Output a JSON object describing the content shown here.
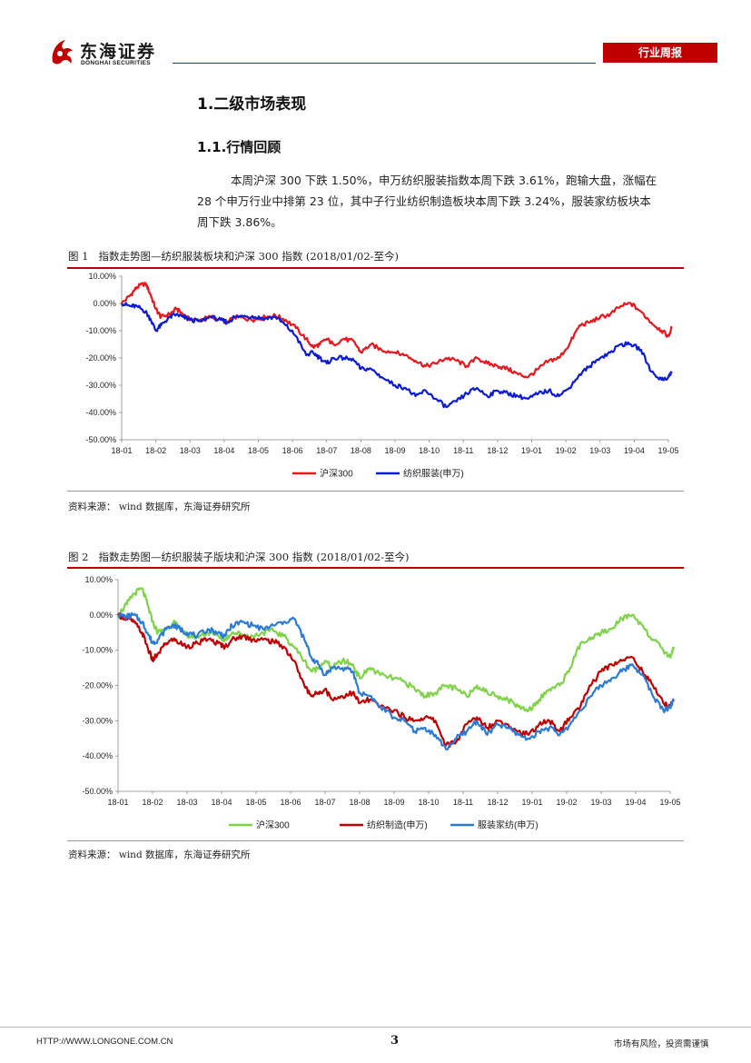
{
  "header": {
    "company_cn": "东海证券",
    "company_en": "DONGHAI SECURITIES",
    "report_type": "行业周报",
    "colors": {
      "brand_red": "#c00000"
    }
  },
  "section": {
    "title": "1.二级市场表现",
    "subtitle": "1.1.行情回顾",
    "paragraph_lines": [
      "本周沪深 300 下跌 1.50%，申万纺织服装指数本周下跌 3.61%，跑输大盘，涨幅在",
      "28 个申万行业中排第 23 位，其中子行业纺织制造板块本周下跌 3.24%，服装家纺板块本",
      "周下跌 3.86%。"
    ]
  },
  "figure1": {
    "caption_label": "图 1",
    "caption_text": "指数走势图—纺织服装板块和沪深 300 指数 (2018/01/02-至今)",
    "source": "资料来源：  wind 数据库，东海证券研究所"
  },
  "figure2": {
    "caption_label": "图 2",
    "caption_text": "指数走势图—纺织服装子版块和沪深 300 指数 (2018/01/02-至今)",
    "source": "资料来源：  wind 数据库，东海证券研究所"
  },
  "footer": {
    "url": "HTTP://WWW.LONGONE.COM.CN",
    "page_number": "3",
    "disclaimer": "市场有风险，投资需谨慎"
  },
  "chart_data": [
    {
      "type": "line",
      "x_ticks": [
        "18-01",
        "18-02",
        "18-03",
        "18-04",
        "18-05",
        "18-06",
        "18-07",
        "18-08",
        "18-09",
        "18-10",
        "18-11",
        "18-12",
        "19-01",
        "19-02",
        "19-03",
        "19-04",
        "19-05"
      ],
      "y_ticks": [
        "10.00%",
        "0.00%",
        "-10.00%",
        "-20.00%",
        "-30.00%",
        "-40.00%",
        "-50.00%"
      ],
      "ylim": [
        -50,
        10
      ],
      "y_unit": "%",
      "legend_position": "bottom",
      "series": [
        {
          "name": "沪深300",
          "color": "#e8171d",
          "x": [
            0,
            0.25,
            0.45,
            0.7,
            0.85,
            1.0,
            1.15,
            1.4,
            1.6,
            1.8,
            2.0,
            2.3,
            2.6,
            2.9,
            3.1,
            3.3,
            3.6,
            3.9,
            4.2,
            4.5,
            4.8,
            5.1,
            5.4,
            5.6,
            5.8,
            6.0,
            6.2,
            6.5,
            6.8,
            7.0,
            7.3,
            7.6,
            8.0,
            8.3,
            8.6,
            8.9,
            9.2,
            9.5,
            9.8,
            10.1,
            10.4,
            10.7,
            11.0,
            11.3,
            11.6,
            11.9,
            12.2,
            12.5,
            12.8,
            13.1,
            13.4,
            13.7,
            14.0,
            14.3,
            14.6,
            14.9,
            15.2,
            15.5,
            15.8,
            16.0,
            16.1
          ],
          "values": [
            0,
            3,
            6,
            7.5,
            3,
            -2,
            -5,
            -4,
            -2,
            -4,
            -6,
            -6,
            -5,
            -6,
            -7,
            -5,
            -5.5,
            -6,
            -5,
            -4.5,
            -6,
            -9,
            -13,
            -16,
            -15,
            -13,
            -15,
            -13,
            -14,
            -18,
            -15,
            -17,
            -18,
            -19,
            -21,
            -23,
            -22,
            -20,
            -21,
            -23,
            -20,
            -22,
            -23,
            -24,
            -26,
            -27,
            -24,
            -21,
            -20,
            -15,
            -8,
            -7,
            -5,
            -4,
            -1,
            0,
            -3,
            -7,
            -10,
            -12,
            -9
          ]
        },
        {
          "name": "纺织服装(申万)",
          "color": "#0b1bd6",
          "x": [
            0,
            0.25,
            0.45,
            0.7,
            0.85,
            1.0,
            1.15,
            1.4,
            1.6,
            1.8,
            2.0,
            2.3,
            2.6,
            2.9,
            3.1,
            3.3,
            3.6,
            3.9,
            4.2,
            4.5,
            4.8,
            5.1,
            5.4,
            5.6,
            5.8,
            6.0,
            6.2,
            6.5,
            6.8,
            7.0,
            7.3,
            7.6,
            8.0,
            8.3,
            8.6,
            8.9,
            9.2,
            9.5,
            9.8,
            10.1,
            10.4,
            10.7,
            11.0,
            11.3,
            11.6,
            11.9,
            12.2,
            12.5,
            12.8,
            13.1,
            13.4,
            13.7,
            14.0,
            14.3,
            14.6,
            14.9,
            15.2,
            15.5,
            15.8,
            16.0,
            16.1
          ],
          "values": [
            0,
            -1,
            -1,
            -3,
            -6,
            -10,
            -8,
            -5,
            -4,
            -5,
            -6,
            -6.5,
            -5,
            -6,
            -7,
            -5,
            -4.5,
            -5,
            -5.5,
            -5,
            -8,
            -12,
            -19,
            -18,
            -20,
            -22,
            -20,
            -20,
            -21,
            -24,
            -24,
            -27,
            -30,
            -31,
            -34,
            -32,
            -35,
            -38,
            -36,
            -33,
            -31,
            -34,
            -32,
            -33,
            -34,
            -35,
            -33,
            -32,
            -34,
            -31,
            -26,
            -23,
            -20,
            -18,
            -15,
            -15,
            -17,
            -25,
            -28,
            -27,
            -25
          ]
        }
      ]
    },
    {
      "type": "line",
      "x_ticks": [
        "18-01",
        "18-02",
        "18-03",
        "18-04",
        "18-05",
        "18-06",
        "18-07",
        "18-08",
        "18-09",
        "18-10",
        "18-11",
        "18-12",
        "19-01",
        "19-02",
        "19-03",
        "19-04",
        "19-05"
      ],
      "y_ticks": [
        "10.00%",
        "0.00%",
        "-10.00%",
        "-20.00%",
        "-30.00%",
        "-40.00%",
        "-50.00%"
      ],
      "ylim": [
        -50,
        10
      ],
      "y_unit": "%",
      "legend_position": "bottom",
      "series": [
        {
          "name": "沪深300",
          "color": "#7ed348",
          "x": [
            0,
            0.25,
            0.45,
            0.7,
            0.85,
            1.0,
            1.15,
            1.4,
            1.6,
            1.8,
            2.0,
            2.3,
            2.6,
            2.9,
            3.1,
            3.3,
            3.6,
            3.9,
            4.2,
            4.5,
            4.8,
            5.1,
            5.4,
            5.6,
            5.8,
            6.0,
            6.2,
            6.5,
            6.8,
            7.0,
            7.3,
            7.6,
            8.0,
            8.3,
            8.6,
            8.9,
            9.2,
            9.5,
            9.8,
            10.1,
            10.4,
            10.7,
            11.0,
            11.3,
            11.6,
            11.9,
            12.2,
            12.5,
            12.8,
            13.1,
            13.4,
            13.7,
            14.0,
            14.3,
            14.6,
            14.9,
            15.2,
            15.5,
            15.8,
            16.0,
            16.1
          ],
          "values": [
            0,
            3,
            6,
            7.5,
            3,
            -2,
            -5,
            -4,
            -2,
            -4,
            -6,
            -6,
            -5,
            -6,
            -7,
            -5,
            -5.5,
            -6,
            -5,
            -4.5,
            -6,
            -9,
            -13,
            -16,
            -15,
            -13,
            -15,
            -13,
            -14,
            -18,
            -15,
            -17,
            -18,
            -19,
            -21,
            -23,
            -22,
            -20,
            -21,
            -23,
            -20,
            -22,
            -23,
            -24,
            -26,
            -27,
            -24,
            -21,
            -20,
            -15,
            -8,
            -7,
            -5,
            -4,
            -1,
            0,
            -3,
            -7,
            -10,
            -12,
            -9
          ]
        },
        {
          "name": "纺织制造(申万)",
          "color": "#c00000",
          "x": [
            0,
            0.25,
            0.45,
            0.7,
            0.85,
            1.0,
            1.15,
            1.4,
            1.6,
            1.8,
            2.0,
            2.3,
            2.6,
            2.9,
            3.1,
            3.3,
            3.6,
            3.9,
            4.2,
            4.5,
            4.8,
            5.1,
            5.4,
            5.6,
            5.8,
            6.0,
            6.2,
            6.5,
            6.8,
            7.0,
            7.3,
            7.6,
            8.0,
            8.3,
            8.6,
            8.9,
            9.2,
            9.5,
            9.8,
            10.1,
            10.4,
            10.7,
            11.0,
            11.3,
            11.6,
            11.9,
            12.2,
            12.5,
            12.8,
            13.1,
            13.4,
            13.7,
            14.0,
            14.3,
            14.6,
            14.9,
            15.2,
            15.5,
            15.8,
            16.0,
            16.1
          ],
          "values": [
            0,
            -1,
            -2,
            -5,
            -9,
            -13,
            -11,
            -8,
            -7,
            -8,
            -9,
            -8,
            -7,
            -8,
            -9,
            -7,
            -6,
            -7,
            -7,
            -7.5,
            -9,
            -13,
            -20,
            -23,
            -22,
            -21,
            -24,
            -23,
            -22,
            -25,
            -24,
            -26,
            -27,
            -29,
            -30,
            -29,
            -30,
            -37,
            -36,
            -31,
            -29,
            -32,
            -30,
            -31,
            -33,
            -34,
            -31,
            -30,
            -33,
            -29,
            -26,
            -20,
            -16,
            -14,
            -13,
            -12,
            -16,
            -20,
            -25,
            -26,
            -24
          ]
        },
        {
          "name": "服装家纺(申万)",
          "color": "#2b7bd6",
          "x": [
            0,
            0.25,
            0.45,
            0.7,
            0.85,
            1.0,
            1.15,
            1.4,
            1.6,
            1.8,
            2.0,
            2.3,
            2.6,
            2.9,
            3.1,
            3.3,
            3.6,
            3.9,
            4.2,
            4.5,
            4.8,
            5.1,
            5.4,
            5.6,
            5.8,
            6.0,
            6.2,
            6.5,
            6.8,
            7.0,
            7.3,
            7.6,
            8.0,
            8.3,
            8.6,
            8.9,
            9.2,
            9.5,
            9.8,
            10.1,
            10.4,
            10.7,
            11.0,
            11.3,
            11.6,
            11.9,
            12.2,
            12.5,
            12.8,
            13.1,
            13.4,
            13.7,
            14.0,
            14.3,
            14.6,
            14.9,
            15.2,
            15.5,
            15.8,
            16.0,
            16.1
          ],
          "values": [
            0,
            -0.5,
            0,
            -2,
            -5,
            -8,
            -7,
            -4,
            -3,
            -4,
            -5,
            -6,
            -4,
            -5,
            -6,
            -3,
            -2,
            -3,
            -4,
            -3,
            -2,
            -1,
            -7,
            -12,
            -14,
            -17,
            -15,
            -15,
            -16,
            -22,
            -23,
            -26,
            -29,
            -30,
            -33,
            -32,
            -34,
            -38,
            -35,
            -33,
            -30,
            -34,
            -31,
            -32,
            -34,
            -35,
            -33,
            -32,
            -34,
            -31,
            -27,
            -23,
            -20,
            -18,
            -16,
            -14,
            -17,
            -23,
            -27,
            -26,
            -24
          ]
        }
      ]
    }
  ]
}
